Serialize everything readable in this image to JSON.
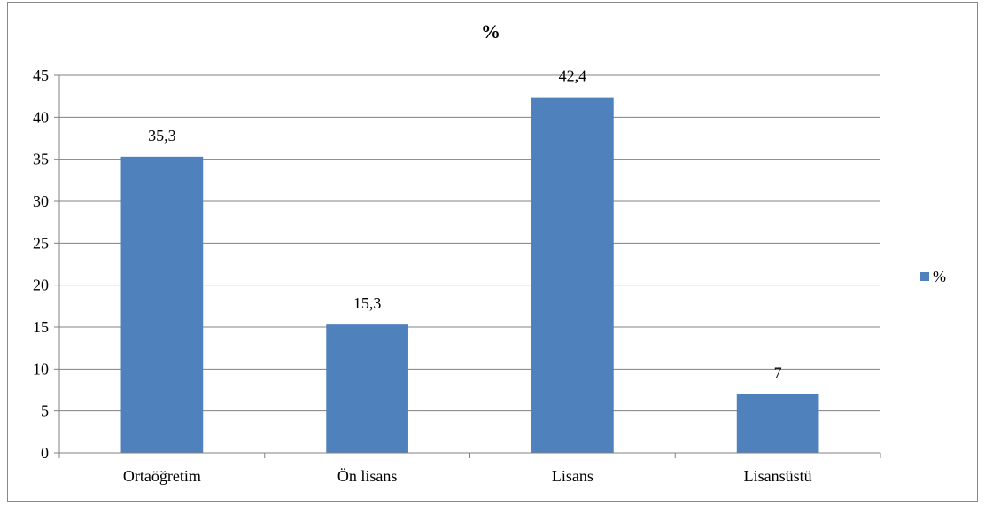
{
  "chart_data": {
    "type": "bar",
    "title": "%",
    "xlabel": "",
    "ylabel": "",
    "categories": [
      "Ortaöğretim",
      "Ön lisans",
      "Lisans",
      "Lisansüstü"
    ],
    "series": [
      {
        "name": "%",
        "values": [
          35.3,
          15.3,
          42.4,
          7
        ],
        "labels": [
          "35,3",
          "15,3",
          "42,4",
          "7"
        ]
      }
    ],
    "ylim": [
      0,
      45
    ],
    "yticks": [
      0,
      5,
      10,
      15,
      20,
      25,
      30,
      35,
      40,
      45
    ],
    "grid": true,
    "legend": "right",
    "bar_color": "#4F81BD"
  }
}
